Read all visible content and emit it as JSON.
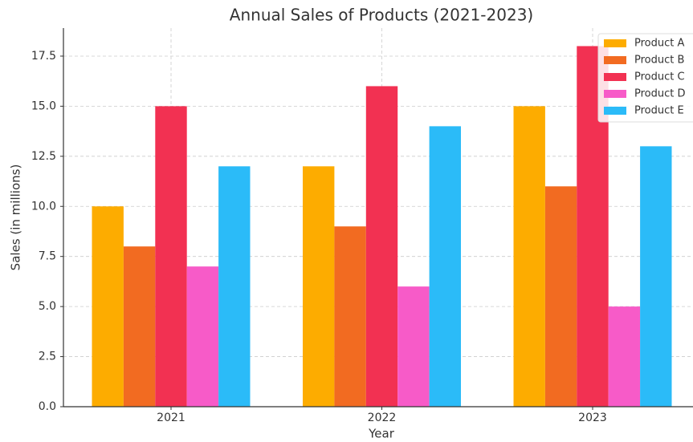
{
  "chart_data": {
    "type": "bar",
    "title": "Annual Sales of Products (2021-2023)",
    "x_label": "Year",
    "y_label": "Sales (in millions)",
    "categories": [
      "2021",
      "2022",
      "2023"
    ],
    "series": [
      {
        "name": "Product A",
        "color": "#fdac00",
        "values": [
          10,
          12,
          15
        ]
      },
      {
        "name": "Product B",
        "color": "#f26b21",
        "values": [
          8,
          9,
          11
        ]
      },
      {
        "name": "Product C",
        "color": "#f23152",
        "values": [
          15,
          16,
          18
        ]
      },
      {
        "name": "Product D",
        "color": "#f75bc8",
        "values": [
          7,
          6,
          5
        ]
      },
      {
        "name": "Product E",
        "color": "#2bbbf8",
        "values": [
          12,
          14,
          13
        ]
      }
    ],
    "ylim": [
      0,
      18.9
    ],
    "yticks": [
      {
        "value": 0,
        "label": "0.0"
      },
      2.5,
      {
        "value": 5,
        "label": "5.0"
      },
      7.5,
      {
        "value": 10,
        "label": "10.0"
      },
      12.5,
      {
        "value": 15,
        "label": "15.0"
      },
      17.5
    ],
    "grid": true,
    "legend": "upper right"
  }
}
